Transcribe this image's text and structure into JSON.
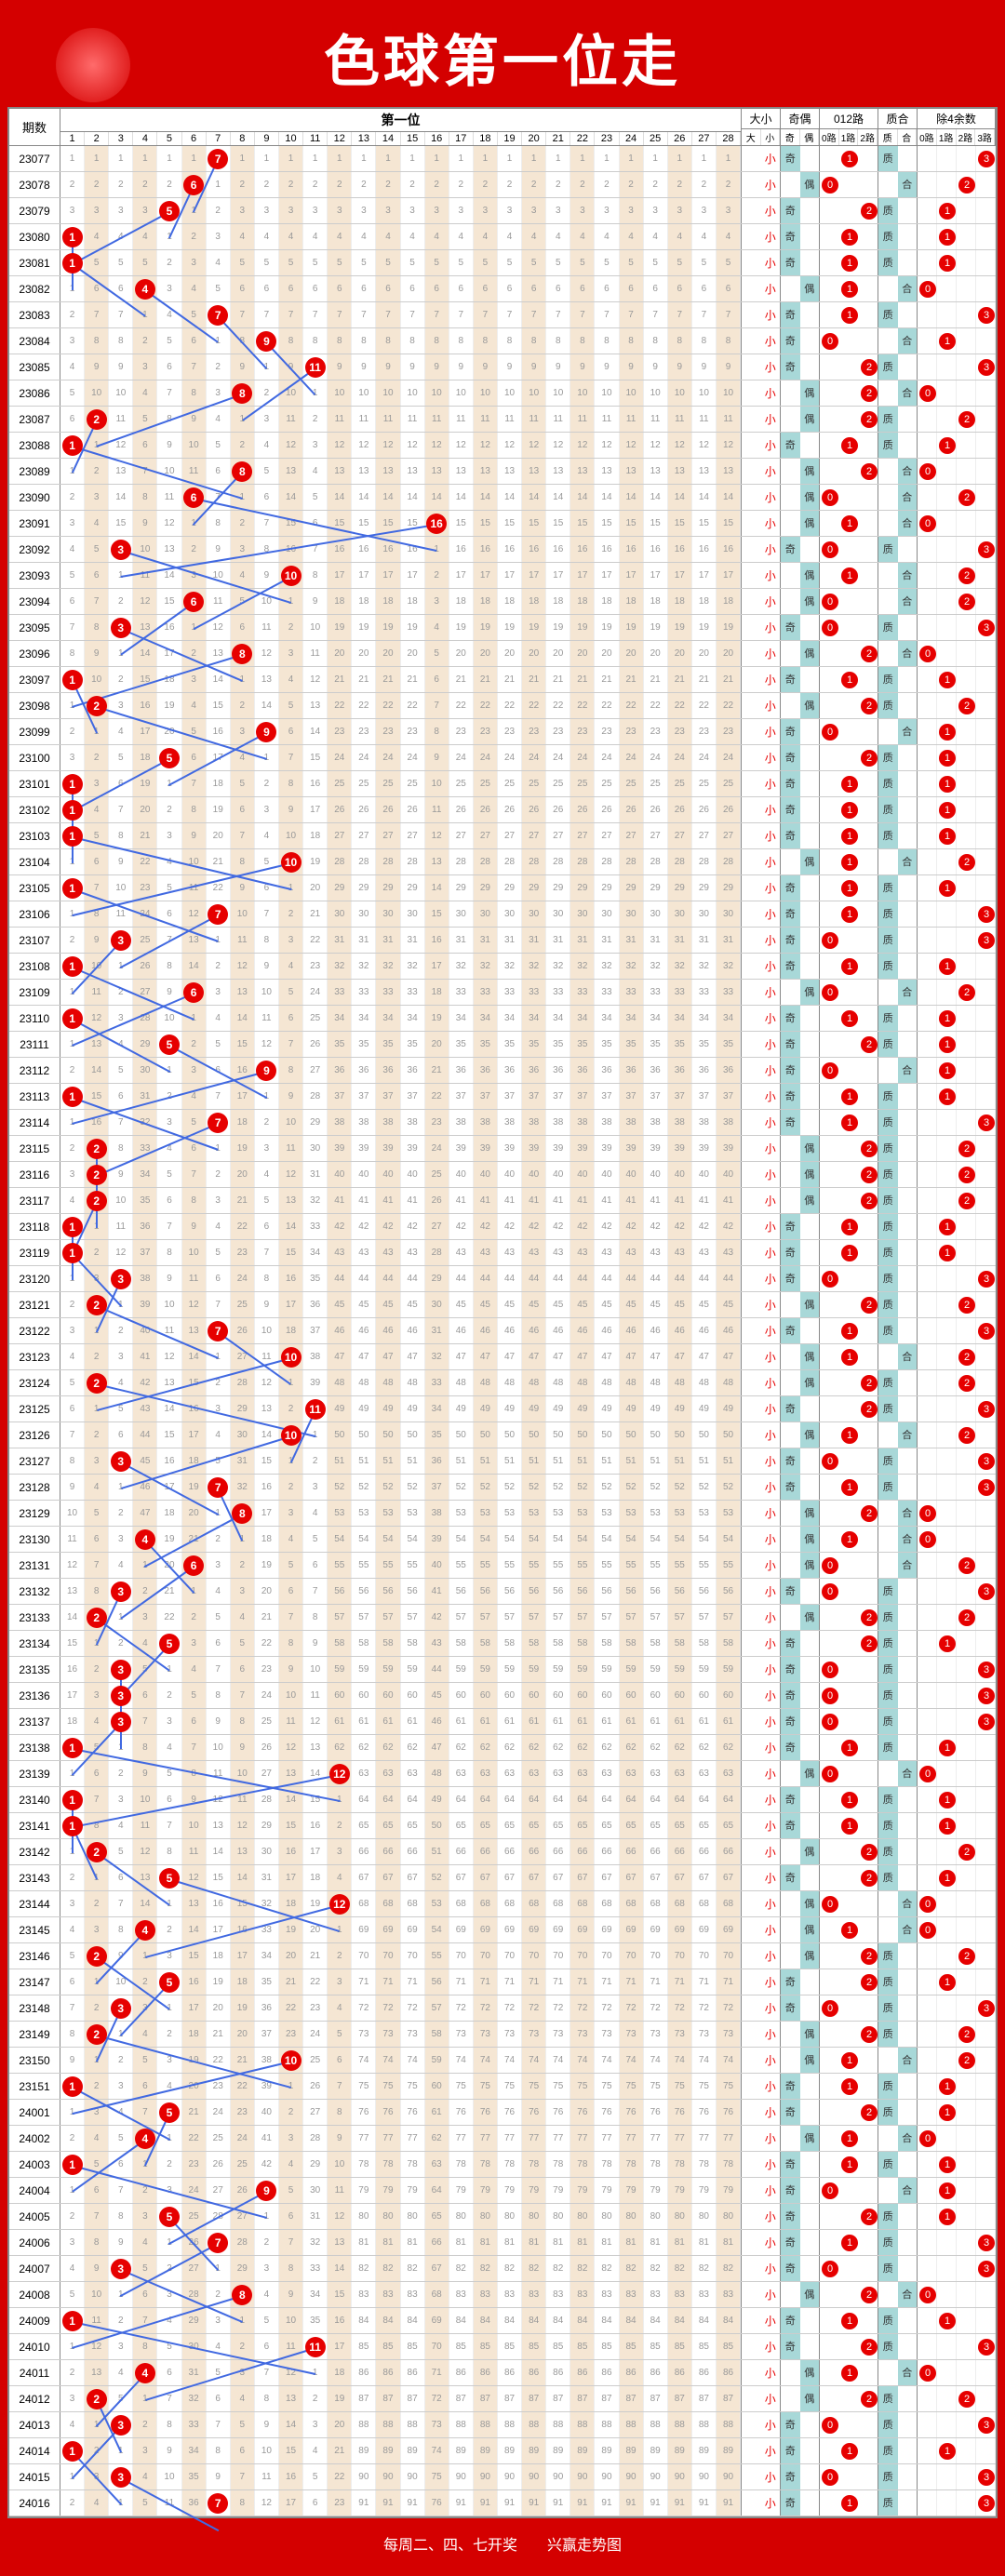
{
  "title": "色球第一位走",
  "footer": "每周二、四、七开奖　　兴赢走势图",
  "colors": {
    "bg": "#d40000",
    "ball": "#e60000",
    "cellEven": "#f5e6d3",
    "hit": "#a8d8d8",
    "line": "#4169e1"
  },
  "headers": {
    "period": "期数",
    "main": "第一位",
    "nums": [
      "1",
      "2",
      "3",
      "4",
      "5",
      "6",
      "7",
      "8",
      "9",
      "10",
      "11",
      "12",
      "13",
      "14",
      "15",
      "16",
      "17",
      "18",
      "19",
      "20",
      "21",
      "22",
      "23",
      "24",
      "25",
      "26",
      "27",
      "28"
    ],
    "dx": {
      "label": "大小",
      "sub": [
        "大",
        "小"
      ]
    },
    "jo": {
      "label": "奇偶",
      "sub": [
        "奇",
        "偶"
      ]
    },
    "r012": {
      "label": "012路",
      "sub": [
        "0路",
        "1路",
        "2路"
      ]
    },
    "zh": {
      "label": "质合",
      "sub": [
        "质",
        "合"
      ]
    },
    "m4": {
      "label": "除4余数",
      "sub": [
        "0路",
        "1路",
        "2路",
        "3路"
      ]
    }
  },
  "rows": [
    {
      "p": "23077",
      "n": 7
    },
    {
      "p": "23078",
      "n": 6
    },
    {
      "p": "23079",
      "n": 5
    },
    {
      "p": "23080",
      "n": 1
    },
    {
      "p": "23081",
      "n": 1
    },
    {
      "p": "23082",
      "n": 4
    },
    {
      "p": "23083",
      "n": 7
    },
    {
      "p": "23084",
      "n": 9
    },
    {
      "p": "23085",
      "n": 11
    },
    {
      "p": "23086",
      "n": 8
    },
    {
      "p": "23087",
      "n": 2
    },
    {
      "p": "23088",
      "n": 1
    },
    {
      "p": "23089",
      "n": 8
    },
    {
      "p": "23090",
      "n": 6
    },
    {
      "p": "23091",
      "n": 16
    },
    {
      "p": "23092",
      "n": 3
    },
    {
      "p": "23093",
      "n": 10
    },
    {
      "p": "23094",
      "n": 6
    },
    {
      "p": "23095",
      "n": 3
    },
    {
      "p": "23096",
      "n": 8
    },
    {
      "p": "23097",
      "n": 1
    },
    {
      "p": "23098",
      "n": 2
    },
    {
      "p": "23099",
      "n": 9
    },
    {
      "p": "23100",
      "n": 5
    },
    {
      "p": "23101",
      "n": 1
    },
    {
      "p": "23102",
      "n": 1
    },
    {
      "p": "23103",
      "n": 1
    },
    {
      "p": "23104",
      "n": 10
    },
    {
      "p": "23105",
      "n": 1
    },
    {
      "p": "23106",
      "n": 7
    },
    {
      "p": "23107",
      "n": 3
    },
    {
      "p": "23108",
      "n": 1
    },
    {
      "p": "23109",
      "n": 6
    },
    {
      "p": "23110",
      "n": 1
    },
    {
      "p": "23111",
      "n": 5
    },
    {
      "p": "23112",
      "n": 9
    },
    {
      "p": "23113",
      "n": 1
    },
    {
      "p": "23114",
      "n": 7
    },
    {
      "p": "23115",
      "n": 2
    },
    {
      "p": "23116",
      "n": 2
    },
    {
      "p": "23117",
      "n": 2
    },
    {
      "p": "23118",
      "n": 1
    },
    {
      "p": "23119",
      "n": 1
    },
    {
      "p": "23120",
      "n": 3
    },
    {
      "p": "23121",
      "n": 2
    },
    {
      "p": "23122",
      "n": 7
    },
    {
      "p": "23123",
      "n": 10
    },
    {
      "p": "23124",
      "n": 2
    },
    {
      "p": "23125",
      "n": 11
    },
    {
      "p": "23126",
      "n": 10
    },
    {
      "p": "23127",
      "n": 3
    },
    {
      "p": "23128",
      "n": 7
    },
    {
      "p": "23129",
      "n": 8
    },
    {
      "p": "23130",
      "n": 4
    },
    {
      "p": "23131",
      "n": 6
    },
    {
      "p": "23132",
      "n": 3
    },
    {
      "p": "23133",
      "n": 2
    },
    {
      "p": "23134",
      "n": 5
    },
    {
      "p": "23135",
      "n": 3
    },
    {
      "p": "23136",
      "n": 3
    },
    {
      "p": "23137",
      "n": 3
    },
    {
      "p": "23138",
      "n": 1
    },
    {
      "p": "23139",
      "n": 12
    },
    {
      "p": "23140",
      "n": 1
    },
    {
      "p": "23141",
      "n": 1
    },
    {
      "p": "23142",
      "n": 2
    },
    {
      "p": "23143",
      "n": 5
    },
    {
      "p": "23144",
      "n": 12
    },
    {
      "p": "23145",
      "n": 4
    },
    {
      "p": "23146",
      "n": 2
    },
    {
      "p": "23147",
      "n": 5
    },
    {
      "p": "23148",
      "n": 3
    },
    {
      "p": "23149",
      "n": 2
    },
    {
      "p": "23150",
      "n": 10
    },
    {
      "p": "23151",
      "n": 1
    },
    {
      "p": "24001",
      "n": 5
    },
    {
      "p": "24002",
      "n": 4
    },
    {
      "p": "24003",
      "n": 1
    },
    {
      "p": "24004",
      "n": 9
    },
    {
      "p": "24005",
      "n": 5
    },
    {
      "p": "24006",
      "n": 7
    },
    {
      "p": "24007",
      "n": 3
    },
    {
      "p": "24008",
      "n": 8
    },
    {
      "p": "24009",
      "n": 1
    },
    {
      "p": "24010",
      "n": 11
    },
    {
      "p": "24011",
      "n": 4
    },
    {
      "p": "24012",
      "n": 2
    },
    {
      "p": "24013",
      "n": 3
    },
    {
      "p": "24014",
      "n": 1
    },
    {
      "p": "24015",
      "n": 3
    },
    {
      "p": "24016",
      "n": 7
    }
  ]
}
